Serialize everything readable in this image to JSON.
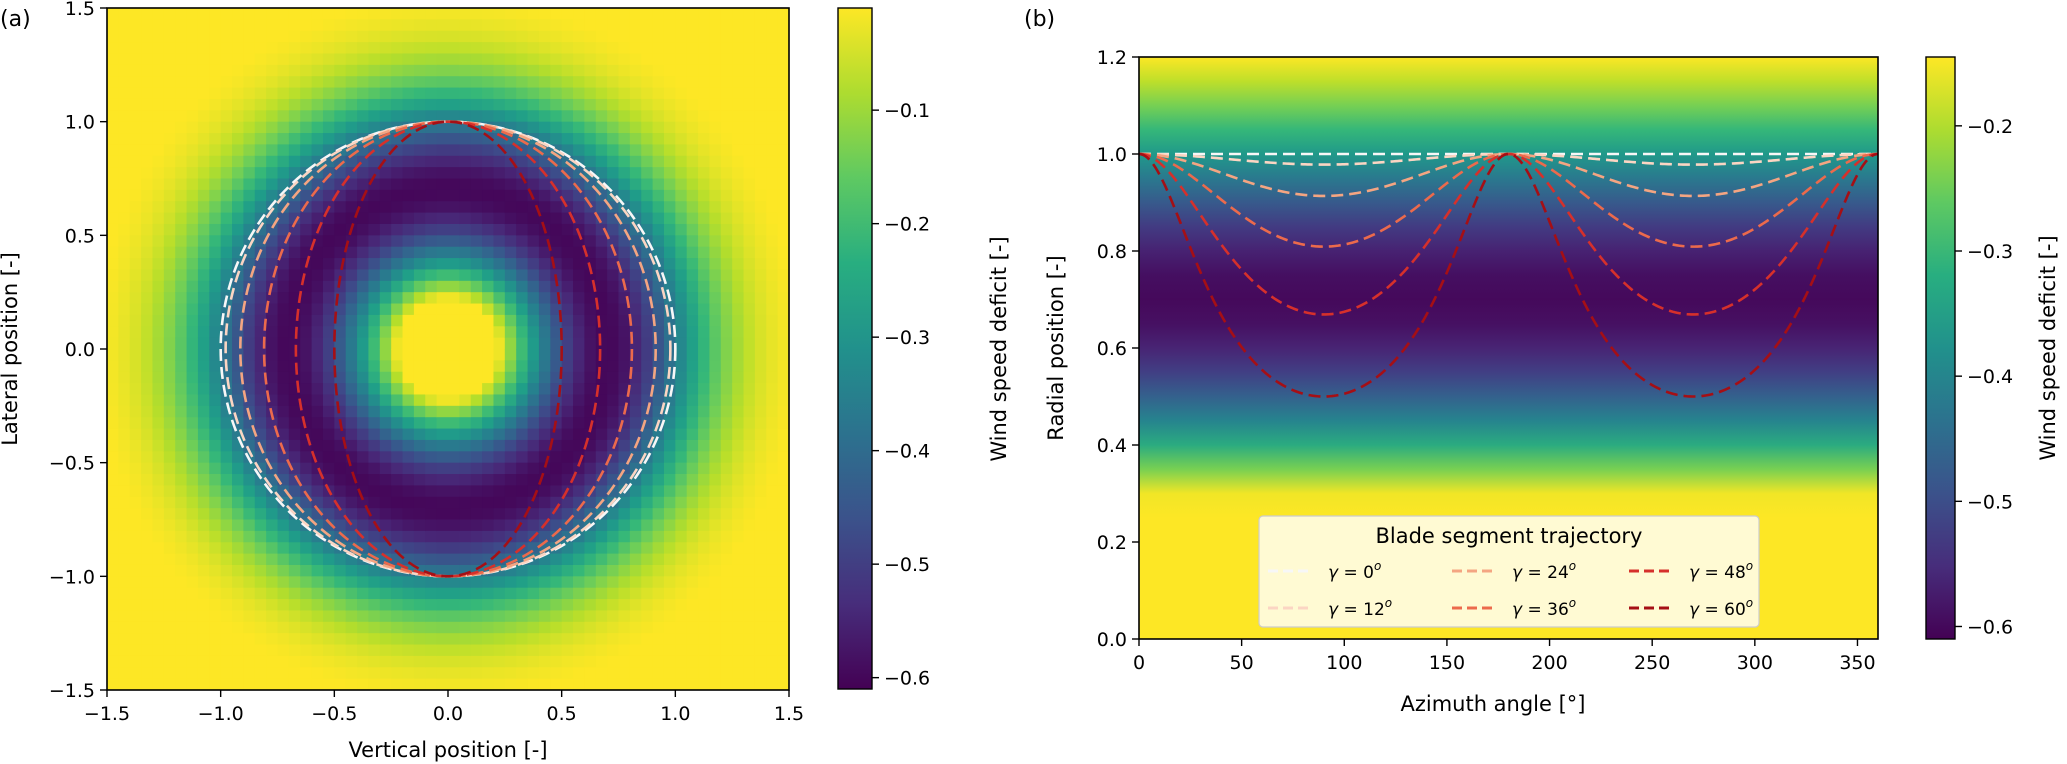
{
  "chart_data": [
    {
      "panel_label": "(a)",
      "type": "heatmap",
      "title": "",
      "xlabel": "Vertical position [-]",
      "ylabel": "Lateral position [-]",
      "xlim": [
        -1.5,
        1.5
      ],
      "ylim": [
        -1.5,
        1.5
      ],
      "xticks": [
        -1.5,
        -1.0,
        -0.5,
        0.0,
        0.5,
        1.0,
        1.5
      ],
      "yticks": [
        -1.5,
        -1.0,
        -0.5,
        0.0,
        0.5,
        1.0,
        1.5
      ],
      "xtick_labels": [
        "−1.5",
        "−1.0",
        "−0.5",
        "0.0",
        "0.5",
        "1.0",
        "1.5"
      ],
      "ytick_labels": [
        "−1.5",
        "−1.0",
        "−0.5",
        "0.0",
        "0.5",
        "1.0",
        "1.5"
      ],
      "field": "wind speed deficit: ring-shaped deficit peaking near r≈0.7, minimum ≈ −0.6, approaching 0 outside r≈1.4",
      "colorbar": {
        "label": "Wind speed deficit [-]",
        "colormap": "viridis",
        "range": [
          -0.61,
          -0.01
        ],
        "ticks": [
          -0.1,
          -0.2,
          -0.3,
          -0.4,
          -0.5,
          -0.6
        ],
        "tick_labels": [
          "−0.1",
          "−0.2",
          "−0.3",
          "−0.4",
          "−0.5",
          "−0.6"
        ]
      },
      "series": [
        {
          "name": "γ = 0°",
          "yaw_deg": 0,
          "color": "#f7f7f7",
          "curve": "ellipse, half-width cos(γ)"
        },
        {
          "name": "γ = 12°",
          "yaw_deg": 12,
          "color": "#fbd5c3",
          "curve": "ellipse, half-width cos(γ)"
        },
        {
          "name": "γ = 24°",
          "yaw_deg": 24,
          "color": "#f4a582",
          "curve": "ellipse, half-width cos(γ)"
        },
        {
          "name": "γ = 36°",
          "yaw_deg": 36,
          "color": "#ec6a4c",
          "curve": "ellipse, half-width cos(γ)"
        },
        {
          "name": "γ = 48°",
          "yaw_deg": 48,
          "color": "#d6302b",
          "curve": "ellipse, half-width cos(γ)"
        },
        {
          "name": "γ = 60°",
          "yaw_deg": 60,
          "color": "#a50f15",
          "curve": "ellipse, half-width cos(γ)"
        }
      ]
    },
    {
      "panel_label": "(b)",
      "type": "line",
      "title": "",
      "xlabel": "Azimuth angle [°]",
      "ylabel": "Radial position [-]",
      "xlim": [
        0,
        360
      ],
      "ylim": [
        0.0,
        1.2
      ],
      "xticks": [
        0,
        50,
        100,
        150,
        200,
        250,
        300,
        350
      ],
      "yticks": [
        0.0,
        0.2,
        0.4,
        0.6,
        0.8,
        1.0,
        1.2
      ],
      "xtick_labels": [
        "0",
        "50",
        "100",
        "150",
        "200",
        "250",
        "300",
        "350"
      ],
      "ytick_labels": [
        "0.0",
        "0.2",
        "0.4",
        "0.6",
        "0.8",
        "1.0",
        "1.2"
      ],
      "background": "wind speed deficit vs radial position (same ring profile)",
      "colorbar": {
        "label": "Wind speed deficit [-]",
        "colormap": "viridis",
        "range": [
          -0.61,
          -0.145
        ],
        "ticks": [
          -0.2,
          -0.3,
          -0.4,
          -0.5,
          -0.6
        ],
        "tick_labels": [
          "−0.2",
          "−0.3",
          "−0.4",
          "−0.5",
          "−0.6"
        ]
      },
      "legend": {
        "title": "Blade segment trajectory",
        "location": "lower center",
        "columns": 3
      },
      "series": [
        {
          "name": "γ = 0°",
          "color": "#f7f7f7",
          "min_radius": 1.0,
          "at_azimuth": [
            90,
            270
          ]
        },
        {
          "name": "γ = 12°",
          "color": "#fbd5c3",
          "min_radius": 0.978,
          "at_azimuth": [
            90,
            270
          ]
        },
        {
          "name": "γ = 24°",
          "color": "#f4a582",
          "min_radius": 0.914,
          "at_azimuth": [
            90,
            270
          ]
        },
        {
          "name": "γ = 36°",
          "color": "#ec6a4c",
          "min_radius": 0.809,
          "at_azimuth": [
            90,
            270
          ]
        },
        {
          "name": "γ = 48°",
          "color": "#d6302b",
          "min_radius": 0.669,
          "at_azimuth": [
            90,
            270
          ]
        },
        {
          "name": "γ = 60°",
          "color": "#a50f15",
          "min_radius": 0.5,
          "at_azimuth": [
            90,
            270
          ]
        }
      ]
    }
  ],
  "legend_labels": [
    {
      "prefix": "γ = ",
      "value": "0",
      "unit": "o"
    },
    {
      "prefix": "γ = ",
      "value": "12",
      "unit": "o"
    },
    {
      "prefix": "γ = ",
      "value": "24",
      "unit": "o"
    },
    {
      "prefix": "γ = ",
      "value": "36",
      "unit": "o"
    },
    {
      "prefix": "γ = ",
      "value": "48",
      "unit": "o"
    },
    {
      "prefix": "γ = ",
      "value": "60",
      "unit": "o"
    }
  ]
}
